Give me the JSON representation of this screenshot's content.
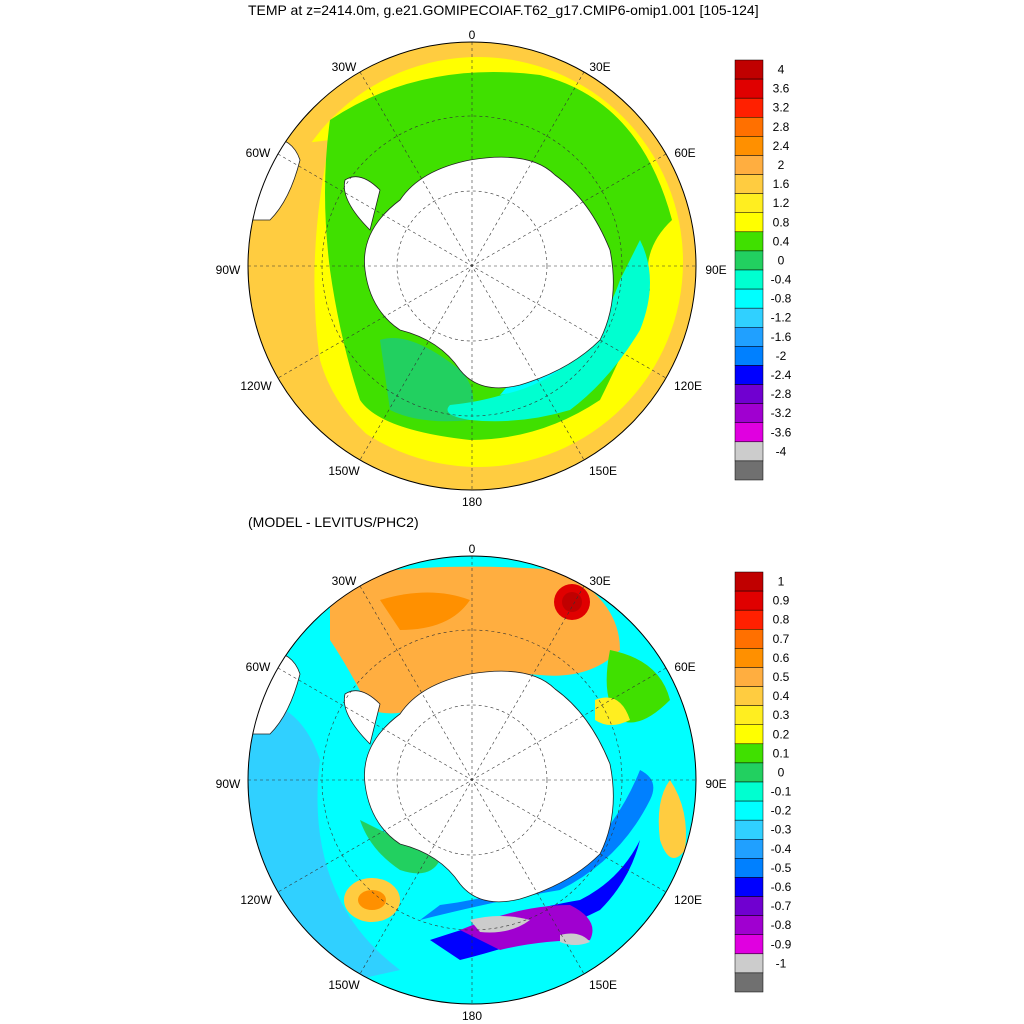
{
  "titles": {
    "top": "TEMP at z=2414.0m, g.e21.GOMIPECOIAF.T62_g17.CMIP6-omip1.001 [105-124]",
    "bottom": "(MODEL - LEVITUS/PHC2)"
  },
  "longitude_labels": [
    "0",
    "30E",
    "60E",
    "90E",
    "120E",
    "150E",
    "180",
    "150W",
    "120W",
    "90W",
    "60W",
    "30W"
  ],
  "top_map": {
    "colorbar_labels": [
      "4",
      "3.6",
      "3.2",
      "2.8",
      "2.4",
      "2",
      "1.6",
      "1.2",
      "0.8",
      "0.4",
      "0",
      "-0.4",
      "-0.8",
      "-1.2",
      "-1.6",
      "-2",
      "-2.4",
      "-2.8",
      "-3.2",
      "-3.6",
      "-4"
    ],
    "colorbar_colors": [
      "#c00000",
      "#e00000",
      "#ff2000",
      "#ff7000",
      "#ff9000",
      "#ffae40",
      "#ffcc40",
      "#ffee20",
      "#ffff00",
      "#40e000",
      "#22d060",
      "#00ffd0",
      "#00ffff",
      "#30d0ff",
      "#20a0ff",
      "#0080ff",
      "#0000ff",
      "#7000d0",
      "#a000d0",
      "#e000e0",
      "#cccccc",
      "#707070"
    ]
  },
  "bottom_map": {
    "colorbar_labels": [
      "1",
      "0.9",
      "0.8",
      "0.7",
      "0.6",
      "0.5",
      "0.4",
      "0.3",
      "0.2",
      "0.1",
      "0",
      "-0.1",
      "-0.2",
      "-0.3",
      "-0.4",
      "-0.5",
      "-0.6",
      "-0.7",
      "-0.8",
      "-0.9",
      "-1"
    ],
    "colorbar_colors": [
      "#c00000",
      "#e00000",
      "#ff2000",
      "#ff7000",
      "#ff9000",
      "#ffae40",
      "#ffcc40",
      "#ffee20",
      "#ffff00",
      "#40e000",
      "#22d060",
      "#00ffd0",
      "#00ffff",
      "#30d0ff",
      "#20a0ff",
      "#0080ff",
      "#0000ff",
      "#7000d0",
      "#a000d0",
      "#e000e0",
      "#cccccc",
      "#707070"
    ]
  }
}
